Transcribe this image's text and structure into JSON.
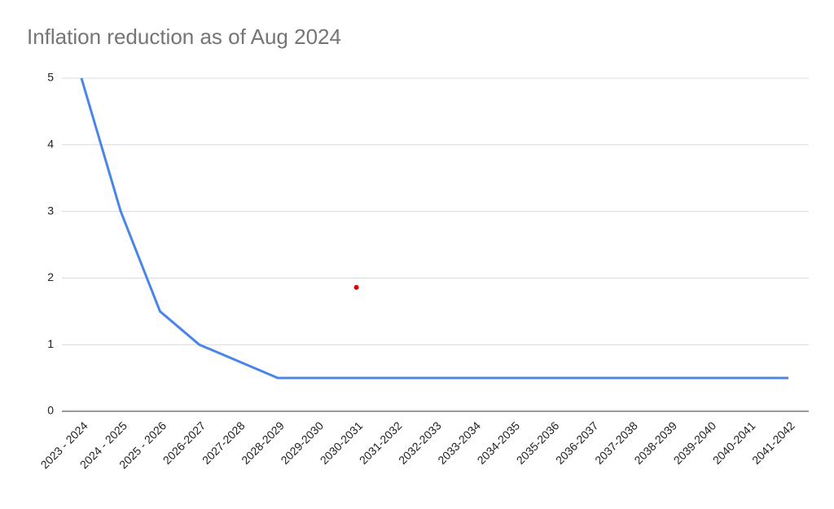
{
  "chart_data": {
    "type": "line",
    "title": "Inflation reduction as of Aug 2024",
    "categories": [
      "2023 - 2024",
      "2024 - 2025",
      "2025 - 2026",
      "2026-2027",
      "2027-2028",
      "2028-2029",
      "2029-2030",
      "2030-2031",
      "2031-2032",
      "2032-2033",
      "2033-2034",
      "2034-2035",
      "2035-2036",
      "2036-2037",
      "2037-2038",
      "2038-2039",
      "2039-2040",
      "2040-2041",
      "2041-2042"
    ],
    "series": [
      {
        "color": "#4a86e8",
        "values": [
          5,
          3,
          1.5,
          1,
          0.75,
          0.5,
          0.5,
          0.5,
          0.5,
          0.5,
          0.5,
          0.5,
          0.5,
          0.5,
          0.5,
          0.5,
          0.5,
          0.5,
          0.5
        ]
      },
      {
        "color": "#e00000",
        "values": [
          null,
          null,
          null,
          null,
          null,
          null,
          null,
          1.86,
          null,
          null,
          null,
          null,
          null,
          null,
          null,
          null,
          null,
          null,
          null
        ],
        "marker_only": true
      }
    ],
    "ylim": [
      0,
      5
    ],
    "yticks": [
      0,
      1,
      2,
      3,
      4,
      5
    ],
    "grid": true
  }
}
